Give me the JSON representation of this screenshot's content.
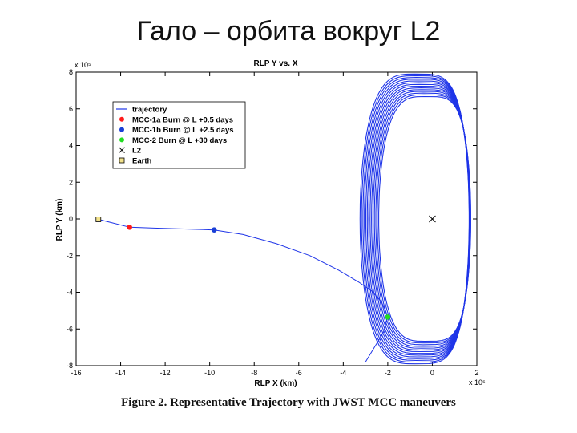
{
  "slide": {
    "title": "Гало – орбита вокруг L2"
  },
  "caption": "Figure 2.  Representative Trajectory with JWST MCC maneuvers",
  "colors": {
    "trajectory": "#1f35e8",
    "mcc1a": "#ff1a1a",
    "mcc1b": "#1a3fd6",
    "mcc2": "#22dd22",
    "earth": "#f2e28c",
    "l2": "#000000"
  },
  "chart_data": {
    "type": "line",
    "title": "RLP Y vs. X",
    "xlabel": "RLP X (km)",
    "ylabel": "RLP Y (km)",
    "x_scale_label": "x 10⁵",
    "y_scale_label": "x 10⁵",
    "xlim": [
      -16,
      2
    ],
    "ylim": [
      -8,
      8
    ],
    "xticks": [
      "-16",
      "-14",
      "-12",
      "-10",
      "-8",
      "-6",
      "-4",
      "-2",
      "0",
      "2"
    ],
    "yticks": [
      "8",
      "6",
      "4",
      "2",
      "0",
      "-2",
      "-4",
      "-6",
      "-8"
    ],
    "grid": false,
    "legend_position": "top-left",
    "series": [
      {
        "name": "trajectory",
        "kind": "transfer",
        "x": [
          -15.0,
          -13.6,
          -12.5,
          -11.0,
          -9.8,
          -8.5,
          -7.0,
          -5.5,
          -4.2,
          -3.3,
          -2.7,
          -2.3,
          -2.1,
          -2.0,
          -2.2,
          -2.6,
          -2.9,
          -3.0
        ],
        "y": [
          -0.02,
          -0.45,
          -0.5,
          -0.55,
          -0.6,
          -0.85,
          -1.35,
          -2.0,
          -2.8,
          -3.45,
          -3.95,
          -4.5,
          -5.0,
          -5.35,
          -6.2,
          -7.0,
          -7.6,
          -7.8
        ]
      },
      {
        "name": "halo-orbit",
        "kind": "halo",
        "x_extent": [
          -3.0,
          1.9
        ],
        "y_extent": [
          -7.9,
          7.9
        ]
      }
    ],
    "markers": [
      {
        "name": "MCC-1a Burn @ L +0.5 days",
        "x": -13.6,
        "y": -0.45,
        "shape": "dot",
        "color": "#ff1a1a"
      },
      {
        "name": "MCC-1b Burn @ L +2.5 days",
        "x": -9.8,
        "y": -0.6,
        "shape": "dot",
        "color": "#1a3fd6"
      },
      {
        "name": "MCC-2 Burn @ L +30 days",
        "x": -2.0,
        "y": -5.35,
        "shape": "dot",
        "color": "#22dd22"
      },
      {
        "name": "L2",
        "x": 0,
        "y": 0,
        "shape": "x",
        "color": "#000000"
      },
      {
        "name": "Earth",
        "x": -15.0,
        "y": -0.02,
        "shape": "square",
        "color": "#f2e28c"
      }
    ],
    "legend": [
      {
        "label": "trajectory",
        "symbol": "line",
        "color": "#1f35e8"
      },
      {
        "label": "MCC-1a Burn @ L +0.5 days",
        "symbol": "dot",
        "color": "#ff1a1a"
      },
      {
        "label": "MCC-1b Burn @ L +2.5 days",
        "symbol": "dot",
        "color": "#1a3fd6"
      },
      {
        "label": "MCC-2 Burn @ L +30 days",
        "symbol": "dot",
        "color": "#22dd22"
      },
      {
        "label": "L2",
        "symbol": "x",
        "color": "#000000"
      },
      {
        "label": "Earth",
        "symbol": "square",
        "color": "#f2e28c"
      }
    ]
  }
}
